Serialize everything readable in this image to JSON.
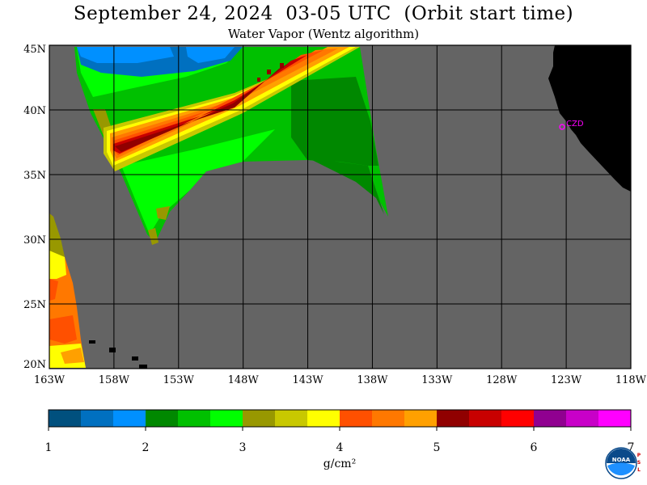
{
  "header": {
    "title": "September 24, 2024  03-05 UTC  (Orbit start time)",
    "subtitle": "Water Vapor (Wentz algorithm)"
  },
  "map": {
    "station_label": "CZD",
    "lat_labels": [
      "45N",
      "40N",
      "35N",
      "30N",
      "25N",
      "20N"
    ],
    "lon_labels": [
      "163W",
      "158W",
      "153W",
      "148W",
      "143W",
      "138W",
      "133W",
      "128W",
      "123W",
      "118W"
    ],
    "colors": {
      "no_data": "#646464",
      "land": "#000000",
      "grid": "#000000",
      "station": "#ff00ff"
    }
  },
  "colorbar": {
    "ticks": [
      "1",
      "2",
      "3",
      "4",
      "5",
      "6",
      "7"
    ],
    "unit": "g/cm²",
    "colors": [
      "#00507e",
      "#0070c0",
      "#0090ff",
      "#008800",
      "#00c000",
      "#00ff00",
      "#989800",
      "#c8c800",
      "#ffff00",
      "#ff5000",
      "#ff7800",
      "#ffa000",
      "#900000",
      "#c80000",
      "#ff0000",
      "#900090",
      "#c800c8",
      "#ff00ff"
    ]
  },
  "logo": {
    "text": "NOAA",
    "side_letters": "PSL"
  }
}
